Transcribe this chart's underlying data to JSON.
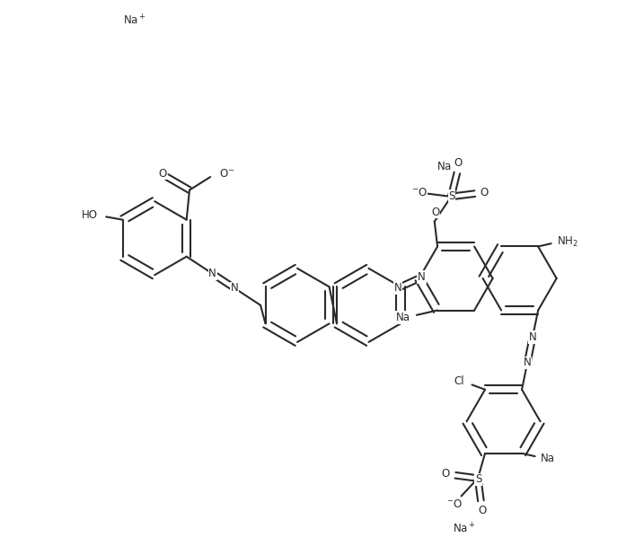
{
  "bg": "#ffffff",
  "lc": "#2b2b2b",
  "lw": 1.5,
  "r": 0.62,
  "figsize": [
    6.97,
    6.18
  ],
  "dpi": 100,
  "xlim": [
    0.0,
    9.8
  ],
  "ylim": [
    0.5,
    9.8
  ]
}
